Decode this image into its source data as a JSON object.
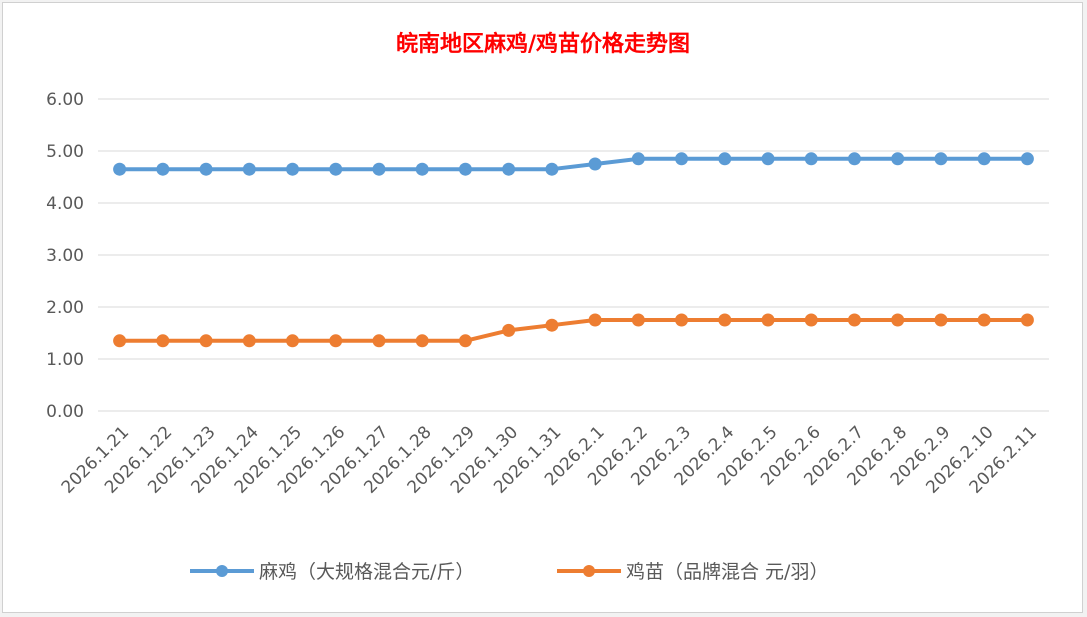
{
  "chart_data": {
    "type": "line",
    "title": "皖南地区麻鸡/鸡苗价格走势图",
    "xlabel": "",
    "ylabel": "",
    "categories": [
      "2026.1.21",
      "2026.1.22",
      "2026.1.23",
      "2026.1.24",
      "2026.1.25",
      "2026.1.26",
      "2026.1.27",
      "2026.1.28",
      "2026.1.29",
      "2026.1.30",
      "2026.1.31",
      "2026.2.1",
      "2026.2.2",
      "2026.2.3",
      "2026.2.4",
      "2026.2.5",
      "2026.2.6",
      "2026.2.7",
      "2026.2.8",
      "2026.2.9",
      "2026.2.10",
      "2026.2.11"
    ],
    "yticks": [
      "0.00",
      "1.00",
      "2.00",
      "3.00",
      "4.00",
      "5.00",
      "6.00"
    ],
    "ylim": [
      0,
      6
    ],
    "grid": true,
    "legend_position": "bottom",
    "series": [
      {
        "name": "麻鸡（大规格混合元/斤）",
        "color": "#5b9bd5",
        "values": [
          4.65,
          4.65,
          4.65,
          4.65,
          4.65,
          4.65,
          4.65,
          4.65,
          4.65,
          4.65,
          4.65,
          4.75,
          4.85,
          4.85,
          4.85,
          4.85,
          4.85,
          4.85,
          4.85,
          4.85,
          4.85,
          4.85
        ]
      },
      {
        "name": "鸡苗（品牌混合 元/羽）",
        "color": "#ed7d31",
        "values": [
          1.35,
          1.35,
          1.35,
          1.35,
          1.35,
          1.35,
          1.35,
          1.35,
          1.35,
          1.55,
          1.65,
          1.75,
          1.75,
          1.75,
          1.75,
          1.75,
          1.75,
          1.75,
          1.75,
          1.75,
          1.75,
          1.75
        ]
      }
    ]
  }
}
